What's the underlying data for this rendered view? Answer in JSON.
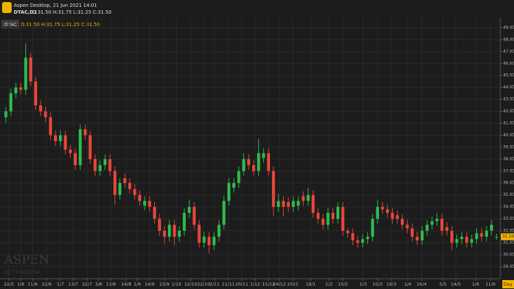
{
  "header": {
    "app_title": "Aspen Desktop, 21 Jun 2021 14:01",
    "symbol": "DTAC,D1",
    "ohlc": "O:31.50 H:31.75 L:31.25 C:31.50"
  },
  "legend": {
    "symbol": "DTAC",
    "ohlc": "O:31.50 H:31.75 L:31.25 C:31.50"
  },
  "watermark": {
    "brand": "ASPEN",
    "byline": "by ThaiQuest"
  },
  "chart_data": {
    "type": "candlestick",
    "open": [
      41.5,
      42,
      43.5,
      44,
      43.8,
      46.5,
      44.5,
      42.5,
      42,
      41.5,
      40,
      39.5,
      40,
      38.8,
      38.5,
      37.5,
      40.5,
      40,
      38,
      37,
      37.5,
      38,
      37,
      35,
      36.4,
      36,
      35.5,
      35,
      34.1,
      34.5,
      34,
      33,
      32,
      31.5,
      32.5,
      31.5,
      32,
      33.5,
      34,
      32.5,
      31,
      31.5,
      30.8,
      31.5,
      32.5,
      34.5,
      35.6,
      36,
      37,
      38,
      37.5,
      37,
      38.1,
      38.5,
      37,
      34,
      34.5,
      34.4,
      34,
      34.1,
      34.9,
      34.5,
      35,
      33.5,
      33,
      32.5,
      33.5,
      33,
      34,
      32,
      31.8,
      31.2,
      31,
      31.3,
      31.5,
      33,
      34,
      33.8,
      33.5,
      33.3,
      33,
      32.5,
      32.2,
      31.5,
      31.2,
      32,
      32.5,
      32.8,
      33,
      32.3,
      32,
      31,
      31.3,
      31.5,
      31,
      31.3,
      31.8,
      31.5,
      32,
      31.5
    ],
    "high": [
      42.4,
      43.9,
      44.4,
      44.4,
      47.7,
      46.9,
      44.9,
      42.9,
      42.4,
      41.9,
      40.4,
      40.4,
      40.4,
      39.2,
      38.9,
      40.9,
      40.9,
      40.4,
      38.4,
      37.9,
      38.4,
      38.4,
      37.4,
      36.4,
      36.8,
      36.4,
      35.9,
      35.4,
      34.9,
      34.9,
      34.4,
      33.4,
      32.4,
      32.9,
      32.9,
      32.4,
      33.9,
      34.6,
      34.4,
      32.9,
      31.9,
      31.9,
      31.9,
      32.9,
      34.9,
      36.4,
      36.4,
      37.4,
      38.5,
      38.4,
      37.9,
      39.7,
      38.9,
      38.9,
      37.4,
      35.1,
      34.9,
      34.8,
      34.9,
      34.9,
      35.3,
      35.6,
      35.4,
      33.9,
      33.4,
      33.9,
      33.9,
      34.4,
      34.4,
      32.2,
      32.2,
      31.6,
      31.7,
      31.9,
      33.4,
      34.6,
      34.4,
      34.2,
      33.9,
      33.7,
      33.4,
      32.9,
      32.6,
      31.9,
      32.4,
      32.9,
      33.2,
      33.5,
      33.4,
      32.7,
      32.4,
      31.7,
      31.9,
      31.9,
      31.7,
      32.2,
      32.2,
      32.4,
      32.9,
      31.75
    ],
    "low": [
      41,
      41.6,
      43.1,
      43.4,
      43.4,
      44.1,
      42.1,
      41.6,
      41.1,
      39.6,
      39.1,
      39.1,
      38.4,
      38.1,
      37.1,
      37.1,
      39.6,
      37.6,
      36.6,
      36.6,
      37.1,
      36.6,
      34.2,
      34.6,
      35.6,
      35.1,
      34.6,
      34.1,
      33.7,
      33.6,
      32.6,
      31.6,
      30.9,
      31.1,
      30.8,
      31.1,
      31.6,
      33.1,
      32.1,
      30.6,
      30.6,
      30.1,
      30.4,
      31.1,
      32.1,
      34.1,
      35.2,
      35.6,
      36.6,
      37.1,
      36.6,
      36.6,
      37.7,
      36.6,
      33.2,
      33.6,
      33.2,
      33.6,
      33.6,
      33.7,
      34.1,
      34.1,
      33.1,
      32.6,
      32.1,
      32.1,
      32.6,
      32.6,
      31.6,
      31.4,
      30.8,
      30.6,
      30.6,
      30.9,
      31.1,
      32.6,
      33.4,
      33.1,
      32.6,
      32.6,
      32.1,
      31.8,
      31.1,
      30.8,
      30.8,
      31.6,
      32.1,
      32.4,
      31.6,
      31.6,
      30.4,
      30.6,
      30.9,
      30.6,
      30.6,
      30.9,
      31.1,
      31.1,
      31.6,
      31.25
    ],
    "close": [
      42,
      43.5,
      44,
      43.8,
      46.5,
      44.5,
      42.5,
      42,
      41.5,
      40,
      39.5,
      40,
      38.8,
      38.5,
      37.5,
      40.5,
      40,
      38,
      37,
      37.5,
      38,
      37,
      35,
      36,
      36,
      35.5,
      35,
      34.5,
      34.5,
      34,
      33,
      32,
      31.5,
      32.5,
      31.5,
      32,
      33.5,
      34,
      32.5,
      31,
      31.5,
      30.8,
      31.5,
      32.5,
      34.5,
      36,
      36,
      37,
      38,
      37.5,
      37,
      38.5,
      38.5,
      37,
      34,
      34.5,
      34,
      34,
      34.5,
      34.5,
      34.5,
      35,
      33.5,
      33,
      32.5,
      33.5,
      33,
      34,
      32,
      31.8,
      31.2,
      31,
      31.3,
      31.5,
      33,
      34,
      33.8,
      33.5,
      33,
      33,
      32.5,
      32.2,
      31.5,
      31.2,
      32,
      32.5,
      32.8,
      33,
      32,
      32,
      31,
      31.3,
      31.5,
      31,
      31.3,
      31.8,
      31.5,
      32,
      32.5,
      31.5
    ],
    "up_color": "#2dbb4e",
    "down_color": "#e8473a",
    "xlim": [
      -0.5,
      99.5
    ],
    "xticks": [
      {
        "value": 0.6,
        "label": "22/5"
      },
      {
        "value": 3.0,
        "label": "1/6"
      },
      {
        "value": 5.4,
        "label": "11/6"
      },
      {
        "value": 8.2,
        "label": "22/6"
      },
      {
        "value": 11.0,
        "label": "1/7"
      },
      {
        "value": 13.6,
        "label": "13/7"
      },
      {
        "value": 16.4,
        "label": "22/7"
      },
      {
        "value": 18.7,
        "label": "3/8"
      },
      {
        "value": 21.2,
        "label": "13/8"
      },
      {
        "value": 24.3,
        "label": "24/8"
      },
      {
        "value": 26.5,
        "label": "1/9"
      },
      {
        "value": 29.0,
        "label": "14/9"
      },
      {
        "value": 32.0,
        "label": "23/9"
      },
      {
        "value": 34.4,
        "label": "1/10"
      },
      {
        "value": 37.3,
        "label": "12/10"
      },
      {
        "value": 39.9,
        "label": "22/10"
      },
      {
        "value": 42.1,
        "label": "2/11"
      },
      {
        "value": 44.9,
        "label": "11/11"
      },
      {
        "value": 47.6,
        "label": "20/11"
      },
      {
        "value": 50.3,
        "label": "1/12"
      },
      {
        "value": 53.0,
        "label": "15/12"
      },
      {
        "value": 55.2,
        "label": "24/12"
      },
      {
        "value": 57.9,
        "label": "2021"
      },
      {
        "value": 61.5,
        "label": "18/1"
      },
      {
        "value": 65.2,
        "label": "1/2"
      },
      {
        "value": 68.0,
        "label": "10/2"
      },
      {
        "value": 72.1,
        "label": "1/3"
      },
      {
        "value": 75.0,
        "label": "10/3"
      },
      {
        "value": 77.8,
        "label": "19/3"
      },
      {
        "value": 81.1,
        "label": "1/4"
      },
      {
        "value": 83.9,
        "label": "16/4"
      },
      {
        "value": 88.2,
        "label": "5/5"
      },
      {
        "value": 90.8,
        "label": "14/5"
      },
      {
        "value": 94.8,
        "label": "1/6"
      },
      {
        "value": 97.8,
        "label": "11/6"
      }
    ],
    "ylim": [
      28.1,
      49.6
    ],
    "yticks": [
      {
        "value": 29,
        "label": "29.00"
      },
      {
        "value": 30,
        "label": "30.00"
      },
      {
        "value": 31,
        "label": "31.00"
      },
      {
        "value": 32,
        "label": "32.00"
      },
      {
        "value": 33,
        "label": "33.00"
      },
      {
        "value": 34,
        "label": "34.00"
      },
      {
        "value": 35,
        "label": "35.00"
      },
      {
        "value": 36,
        "label": "36.00"
      },
      {
        "value": 37,
        "label": "37.00"
      },
      {
        "value": 38,
        "label": "38.00"
      },
      {
        "value": 39,
        "label": "39.00"
      },
      {
        "value": 40,
        "label": "40.00"
      },
      {
        "value": 41,
        "label": "41.00"
      },
      {
        "value": 42,
        "label": "42.00"
      },
      {
        "value": 43,
        "label": "43.00"
      },
      {
        "value": 44,
        "label": "44.00"
      },
      {
        "value": 45,
        "label": "45.00"
      },
      {
        "value": 46,
        "label": "46.00"
      },
      {
        "value": 47,
        "label": "47.00"
      },
      {
        "value": 48,
        "label": "48.00"
      },
      {
        "value": 49,
        "label": "49.00"
      }
    ],
    "grid": true,
    "last_price": {
      "value": 31.5,
      "label": "31.50"
    },
    "period_label": "Day"
  }
}
